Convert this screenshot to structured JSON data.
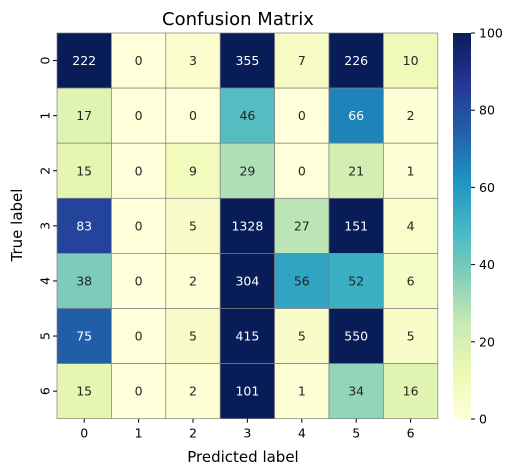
{
  "chart_data": {
    "type": "heatmap",
    "title": "Confusion Matrix",
    "xlabel": "Predicted label",
    "ylabel": "True label",
    "x_categories": [
      "0",
      "1",
      "2",
      "3",
      "4",
      "5",
      "6"
    ],
    "y_categories": [
      "0",
      "1",
      "2",
      "3",
      "4",
      "5",
      "6"
    ],
    "values": [
      [
        222,
        0,
        3,
        355,
        7,
        226,
        10
      ],
      [
        17,
        0,
        0,
        46,
        0,
        66,
        2
      ],
      [
        15,
        0,
        9,
        29,
        0,
        21,
        1
      ],
      [
        83,
        0,
        5,
        1328,
        27,
        151,
        4
      ],
      [
        38,
        0,
        2,
        304,
        56,
        52,
        6
      ],
      [
        75,
        0,
        5,
        415,
        5,
        550,
        5
      ],
      [
        15,
        0,
        2,
        101,
        1,
        34,
        16
      ]
    ],
    "colormap": "YlGnBu",
    "color_range": [
      0,
      100
    ],
    "colorbar_ticks": [
      "0",
      "20",
      "40",
      "60",
      "80",
      "100"
    ],
    "grid": true,
    "annotated": true
  }
}
